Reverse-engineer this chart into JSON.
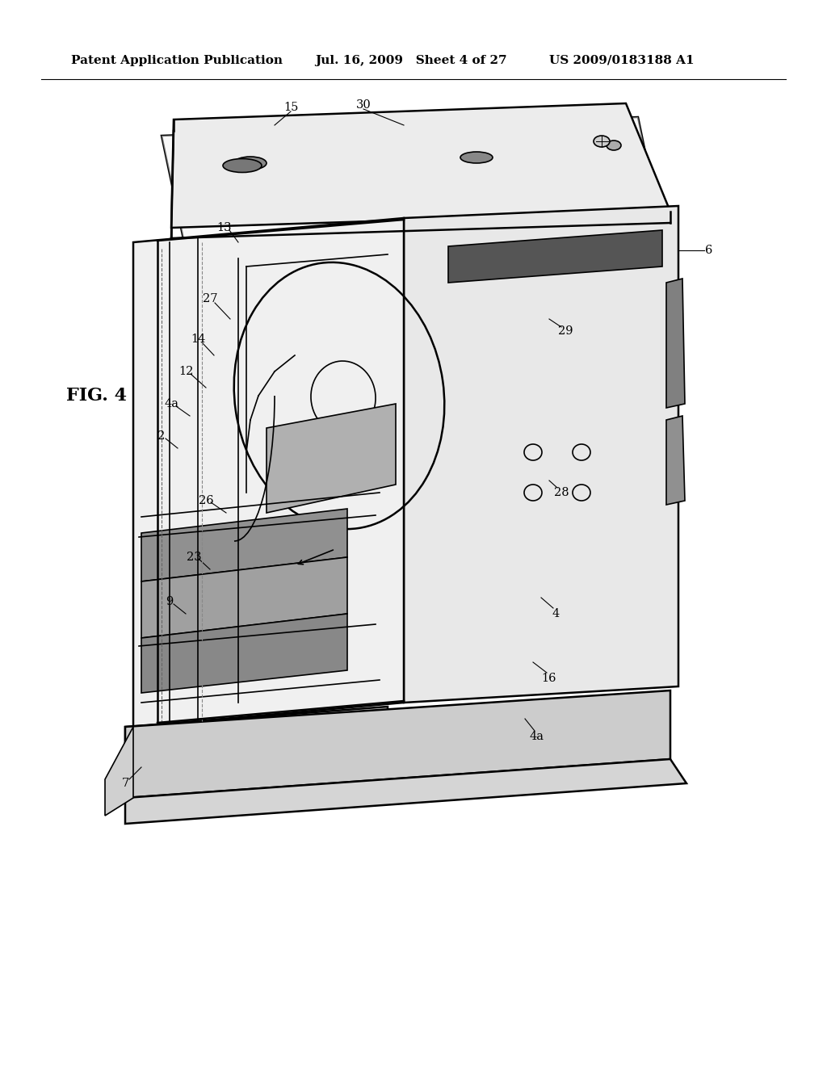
{
  "background_color": "#ffffff",
  "header_left": "Patent Application Publication",
  "header_mid": "Jul. 16, 2009   Sheet 4 of 27",
  "header_right": "US 2009/0183188 A1",
  "fig_label": "FIG. 4",
  "header_fontsize": 11,
  "fig_label_fontsize": 16
}
